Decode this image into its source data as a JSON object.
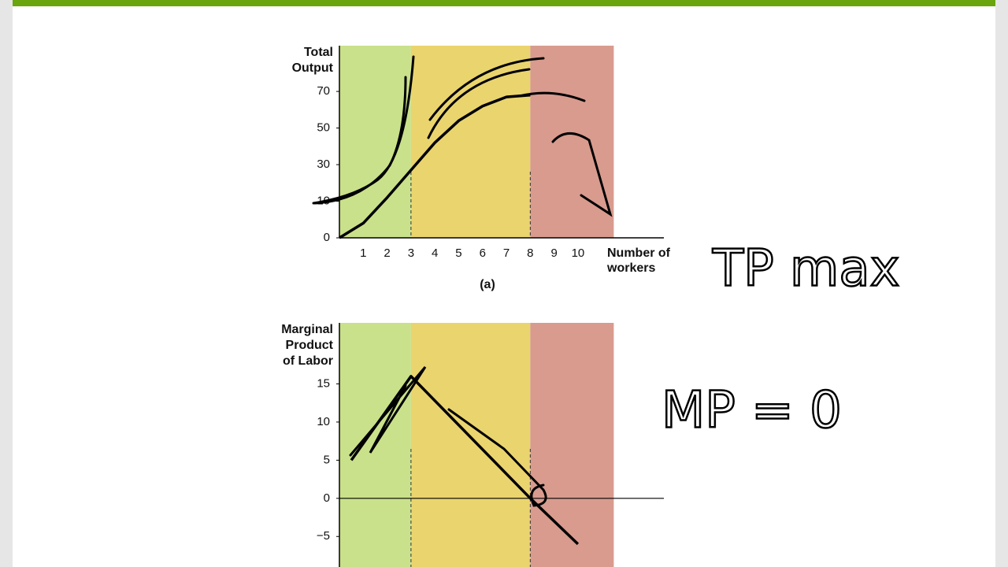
{
  "chart_data": [
    {
      "type": "line",
      "y_label": [
        "Total",
        "Output"
      ],
      "x_label": [
        "Number of",
        "workers"
      ],
      "caption": "(a)",
      "x": [
        0,
        1,
        2,
        3,
        4,
        5,
        6,
        7,
        8
      ],
      "values": [
        0,
        4,
        12,
        27,
        42,
        54,
        62,
        67,
        68
      ],
      "color": "#000000",
      "xlim": [
        0,
        13.6
      ],
      "xticks": [
        1,
        2,
        3,
        4,
        5,
        6,
        7,
        8,
        9,
        10
      ],
      "ylim": [
        0,
        95
      ],
      "yticks": [
        0,
        10,
        30,
        50,
        70
      ],
      "regions": [
        {
          "from": 0,
          "to": 3,
          "color": "#c9e18a"
        },
        {
          "from": 3,
          "to": 8,
          "color": "#ead46e"
        },
        {
          "from": 8,
          "to": 11.5,
          "color": "#d89b8e"
        }
      ]
    },
    {
      "type": "line",
      "y_label": [
        "Marginal",
        "Product",
        "of Labor"
      ],
      "x": [
        0.5,
        3,
        8,
        10
      ],
      "values": [
        5,
        16,
        0,
        -6
      ],
      "color": "#000000",
      "xlim": [
        0,
        13.6
      ],
      "ylim": [
        -9,
        23
      ],
      "yticks": [
        {
          "value": -5,
          "label": "−5"
        },
        0,
        5,
        10,
        15
      ],
      "zero_line": true,
      "regions": [
        {
          "from": 0,
          "to": 3,
          "color": "#c9e18a"
        },
        {
          "from": 3,
          "to": 8,
          "color": "#ead46e"
        },
        {
          "from": 8,
          "to": 11.5,
          "color": "#d89b8e"
        }
      ]
    }
  ],
  "annotations": [
    "TP max",
    "MP = 0"
  ]
}
